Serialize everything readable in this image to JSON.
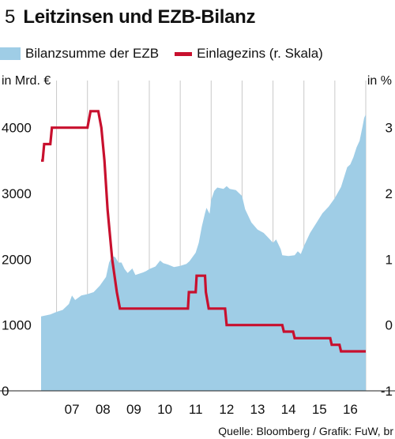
{
  "figure": {
    "number": "5",
    "title": "Leitzinsen und EZB-Bilanz"
  },
  "legend": [
    {
      "label": "Bilanzsumme der EZB",
      "color": "#9fcde6",
      "kind": "area"
    },
    {
      "label": "Einlagezins (r. Skala)",
      "color": "#c8102e",
      "kind": "line"
    }
  ],
  "source": "Quelle: Bloomberg / Grafik: FuW, br",
  "chart_data": {
    "type": "area",
    "left_axis_unit": "in Mrd. €",
    "right_axis_unit": "in %",
    "xlim": [
      2006.5,
      2017.0
    ],
    "ylim_left": [
      0,
      4500
    ],
    "ylim_right": [
      -1,
      3.5
    ],
    "x_ticks": [
      "07",
      "08",
      "09",
      "10",
      "11",
      "12",
      "13",
      "14",
      "15",
      "16"
    ],
    "y_ticks_left": [
      "0",
      "1000",
      "2000",
      "3000",
      "4000"
    ],
    "y_ticks_right": [
      "-1",
      "0",
      "1",
      "2",
      "3"
    ],
    "grid": "vertical",
    "series": [
      {
        "name": "Bilanzsumme der EZB",
        "kind": "area",
        "axis": "left",
        "points": [
          [
            2006.5,
            1130
          ],
          [
            2006.8,
            1160
          ],
          [
            2007.0,
            1200
          ],
          [
            2007.2,
            1230
          ],
          [
            2007.4,
            1320
          ],
          [
            2007.5,
            1450
          ],
          [
            2007.6,
            1380
          ],
          [
            2007.8,
            1450
          ],
          [
            2008.0,
            1470
          ],
          [
            2008.2,
            1500
          ],
          [
            2008.4,
            1600
          ],
          [
            2008.6,
            1730
          ],
          [
            2008.7,
            1950
          ],
          [
            2008.8,
            2050
          ],
          [
            2008.9,
            2030
          ],
          [
            2009.0,
            1950
          ],
          [
            2009.1,
            1950
          ],
          [
            2009.2,
            1850
          ],
          [
            2009.3,
            1790
          ],
          [
            2009.45,
            1860
          ],
          [
            2009.55,
            1760
          ],
          [
            2009.8,
            1800
          ],
          [
            2009.9,
            1820
          ],
          [
            2010.0,
            1850
          ],
          [
            2010.2,
            1890
          ],
          [
            2010.35,
            1980
          ],
          [
            2010.45,
            1940
          ],
          [
            2010.6,
            1920
          ],
          [
            2010.8,
            1880
          ],
          [
            2011.0,
            1900
          ],
          [
            2011.2,
            1930
          ],
          [
            2011.3,
            1970
          ],
          [
            2011.5,
            2100
          ],
          [
            2011.6,
            2250
          ],
          [
            2011.7,
            2500
          ],
          [
            2011.8,
            2700
          ],
          [
            2011.85,
            2780
          ],
          [
            2011.95,
            2690
          ],
          [
            2012.0,
            2900
          ],
          [
            2012.1,
            3040
          ],
          [
            2012.2,
            3090
          ],
          [
            2012.4,
            3070
          ],
          [
            2012.5,
            3110
          ],
          [
            2012.6,
            3070
          ],
          [
            2012.8,
            3050
          ],
          [
            2013.0,
            2960
          ],
          [
            2013.1,
            2760
          ],
          [
            2013.3,
            2560
          ],
          [
            2013.5,
            2450
          ],
          [
            2013.7,
            2400
          ],
          [
            2013.9,
            2300
          ],
          [
            2014.0,
            2250
          ],
          [
            2014.1,
            2300
          ],
          [
            2014.25,
            2150
          ],
          [
            2014.3,
            2060
          ],
          [
            2014.5,
            2050
          ],
          [
            2014.7,
            2060
          ],
          [
            2014.8,
            2120
          ],
          [
            2014.9,
            2080
          ],
          [
            2015.0,
            2200
          ],
          [
            2015.2,
            2400
          ],
          [
            2015.4,
            2550
          ],
          [
            2015.6,
            2700
          ],
          [
            2015.8,
            2800
          ],
          [
            2016.0,
            2930
          ],
          [
            2016.2,
            3100
          ],
          [
            2016.4,
            3400
          ],
          [
            2016.5,
            3440
          ],
          [
            2016.6,
            3550
          ],
          [
            2016.7,
            3700
          ],
          [
            2016.8,
            3800
          ],
          [
            2016.9,
            4030
          ],
          [
            2016.95,
            4150
          ],
          [
            2017.0,
            4200
          ]
        ]
      },
      {
        "name": "Einlagezins (r. Skala)",
        "kind": "step",
        "axis": "right",
        "points": [
          [
            2006.5,
            2.5
          ],
          [
            2006.55,
            2.5
          ],
          [
            2006.6,
            2.75
          ],
          [
            2006.8,
            2.75
          ],
          [
            2006.85,
            3.0
          ],
          [
            2008.0,
            3.0
          ],
          [
            2008.1,
            3.25
          ],
          [
            2008.35,
            3.25
          ],
          [
            2008.45,
            3.0
          ],
          [
            2008.55,
            2.5
          ],
          [
            2008.65,
            1.75
          ],
          [
            2008.8,
            1.0
          ],
          [
            2008.95,
            0.5
          ],
          [
            2009.05,
            0.25
          ],
          [
            2009.1,
            0.25
          ],
          [
            2011.25,
            0.25
          ],
          [
            2011.28,
            0.5
          ],
          [
            2011.5,
            0.5
          ],
          [
            2011.53,
            0.75
          ],
          [
            2011.8,
            0.75
          ],
          [
            2011.83,
            0.5
          ],
          [
            2011.92,
            0.25
          ],
          [
            2012.45,
            0.25
          ],
          [
            2012.5,
            0.0
          ],
          [
            2014.3,
            0.0
          ],
          [
            2014.35,
            -0.1
          ],
          [
            2014.65,
            -0.1
          ],
          [
            2014.7,
            -0.2
          ],
          [
            2015.85,
            -0.2
          ],
          [
            2015.9,
            -0.3
          ],
          [
            2016.15,
            -0.3
          ],
          [
            2016.2,
            -0.4
          ],
          [
            2017.0,
            -0.4
          ]
        ]
      }
    ]
  }
}
